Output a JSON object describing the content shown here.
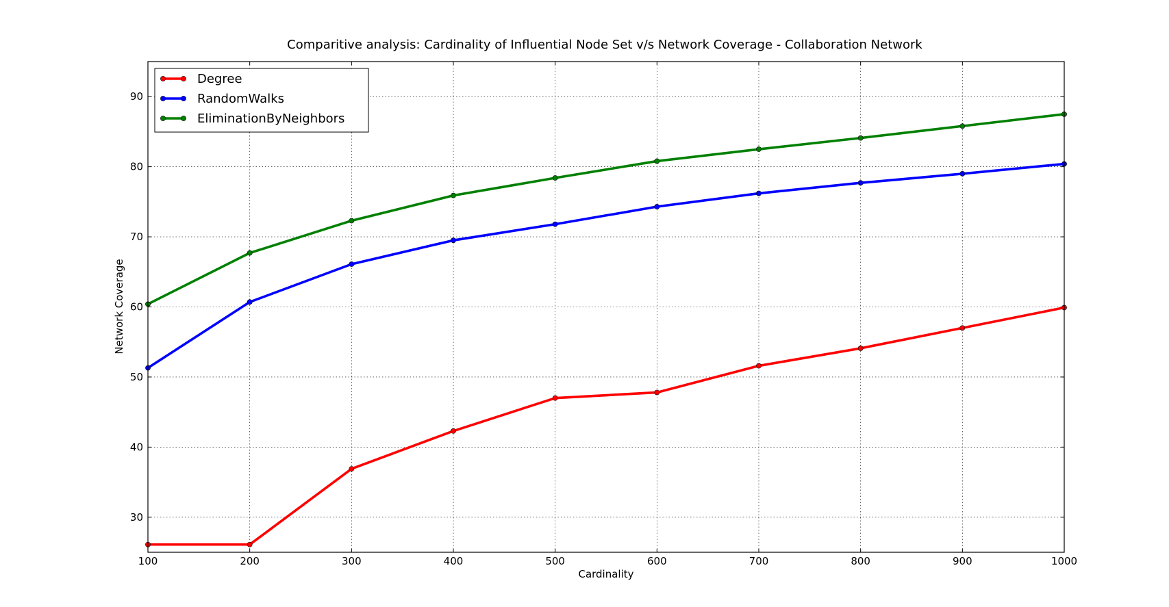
{
  "chart_data": {
    "type": "line",
    "title": "Comparitive analysis: Cardinality of Influential Node Set v/s Network Coverage - Collaboration Network",
    "xlabel": "Cardinality",
    "ylabel": "Network Coverage",
    "xlim": [
      100,
      1000
    ],
    "ylim": [
      25,
      95
    ],
    "x_ticks": [
      100,
      200,
      300,
      400,
      500,
      600,
      700,
      800,
      900,
      1000
    ],
    "y_ticks": [
      30,
      40,
      50,
      60,
      70,
      80,
      90
    ],
    "grid": true,
    "legend_position": "top-left",
    "x": [
      100,
      200,
      300,
      400,
      500,
      600,
      700,
      800,
      900,
      1000
    ],
    "series": [
      {
        "name": "Degree",
        "color": "#ff0000",
        "values": [
          26.1,
          26.1,
          36.9,
          42.3,
          47.0,
          47.8,
          51.6,
          54.1,
          57.0,
          59.9
        ]
      },
      {
        "name": "RandomWalks",
        "color": "#0000ff",
        "values": [
          51.3,
          60.7,
          66.1,
          69.5,
          71.8,
          74.3,
          76.2,
          77.7,
          79.0,
          80.4
        ]
      },
      {
        "name": "EliminationByNeighbors",
        "color": "#008000",
        "values": [
          60.4,
          67.7,
          72.3,
          75.9,
          78.4,
          80.8,
          82.5,
          84.1,
          85.8,
          87.5
        ]
      }
    ]
  }
}
